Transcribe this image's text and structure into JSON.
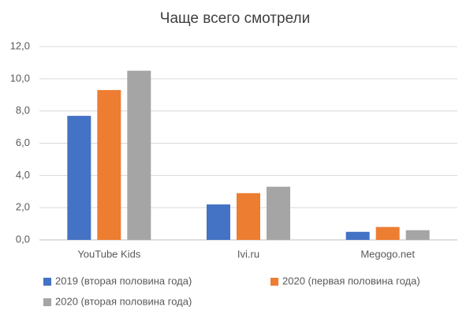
{
  "chart_data": {
    "type": "bar",
    "title": "Чаще всего смотрели",
    "categories": [
      "YouTube Kids",
      "Ivi.ru",
      "Megogo.net"
    ],
    "series": [
      {
        "name": "2019 (вторая половина года)",
        "color": "#4472c4",
        "values": [
          7.7,
          2.2,
          0.5
        ]
      },
      {
        "name": "2020 (первая половина года)",
        "color": "#ed7d31",
        "values": [
          9.3,
          2.9,
          0.8
        ]
      },
      {
        "name": "2020 (вторая половина года)",
        "color": "#a5a5a5",
        "values": [
          10.5,
          3.3,
          0.6
        ]
      }
    ],
    "ylim": [
      0,
      12
    ],
    "yticks": [
      {
        "value": 0,
        "label": "0,0"
      },
      {
        "value": 2,
        "label": "2,0"
      },
      {
        "value": 4,
        "label": "4,0"
      },
      {
        "value": 6,
        "label": "6,0"
      },
      {
        "value": 8,
        "label": "8,0"
      },
      {
        "value": 10,
        "label": "10,0"
      },
      {
        "value": 12,
        "label": "12,0"
      }
    ],
    "grid": true,
    "legend": "bottom"
  }
}
